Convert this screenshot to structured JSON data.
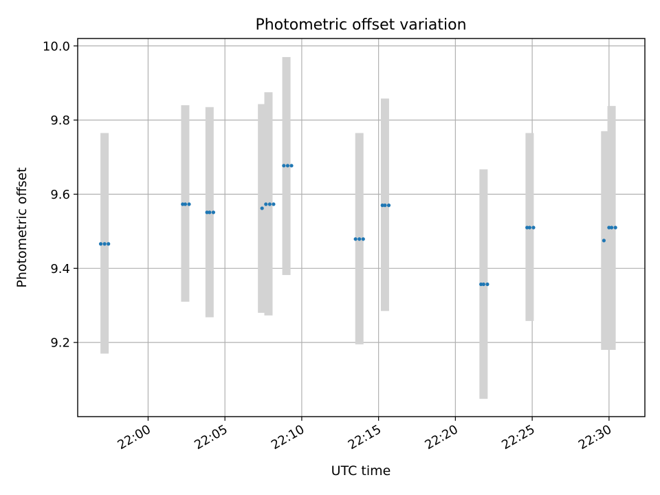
{
  "chart_data": {
    "type": "scatter",
    "title": "Photometric offset variation",
    "xlabel": "UTC time",
    "ylabel": "Photometric offset",
    "x_ticks": [
      "22:00",
      "22:05",
      "22:10",
      "22:15",
      "22:20",
      "22:25",
      "22:30"
    ],
    "y_ticks": [
      "9.2",
      "9.4",
      "9.6",
      "9.8",
      "10.0"
    ],
    "xlim": [
      "21:55:25",
      "22:32:20"
    ],
    "ylim": [
      9.0,
      10.02
    ],
    "grid": true,
    "colors": {
      "points": "#1f77b4",
      "error_bars": "#d3d3d3",
      "grid": "#b0b0b0"
    },
    "error_bars": [
      {
        "x": "21:57:10",
        "low": 9.17,
        "high": 9.765
      },
      {
        "x": "22:02:25",
        "low": 9.31,
        "high": 9.84
      },
      {
        "x": "22:04:00",
        "low": 9.268,
        "high": 9.835
      },
      {
        "x": "22:07:25",
        "low": 9.28,
        "high": 9.843
      },
      {
        "x": "22:07:50",
        "low": 9.273,
        "high": 9.875
      },
      {
        "x": "22:09:00",
        "low": 9.382,
        "high": 9.97
      },
      {
        "x": "22:13:45",
        "low": 9.195,
        "high": 9.765
      },
      {
        "x": "22:15:25",
        "low": 9.285,
        "high": 9.858
      },
      {
        "x": "22:21:50",
        "low": 9.048,
        "high": 9.667
      },
      {
        "x": "22:24:50",
        "low": 9.258,
        "high": 9.765
      },
      {
        "x": "22:29:45",
        "low": 9.18,
        "high": 9.77
      },
      {
        "x": "22:30:10",
        "low": 9.18,
        "high": 9.838
      }
    ],
    "points": [
      {
        "x": "21:56:55",
        "y": 9.466
      },
      {
        "x": "21:57:10",
        "y": 9.466
      },
      {
        "x": "21:57:25",
        "y": 9.466
      },
      {
        "x": "22:02:15",
        "y": 9.573
      },
      {
        "x": "22:02:25",
        "y": 9.573
      },
      {
        "x": "22:02:40",
        "y": 9.573
      },
      {
        "x": "22:03:50",
        "y": 9.551
      },
      {
        "x": "22:04:00",
        "y": 9.551
      },
      {
        "x": "22:04:15",
        "y": 9.551
      },
      {
        "x": "22:07:25",
        "y": 9.562
      },
      {
        "x": "22:07:40",
        "y": 9.573
      },
      {
        "x": "22:07:55",
        "y": 9.573
      },
      {
        "x": "22:08:10",
        "y": 9.573
      },
      {
        "x": "22:08:50",
        "y": 9.677
      },
      {
        "x": "22:09:05",
        "y": 9.677
      },
      {
        "x": "22:09:20",
        "y": 9.677
      },
      {
        "x": "22:13:30",
        "y": 9.479
      },
      {
        "x": "22:13:45",
        "y": 9.479
      },
      {
        "x": "22:14:00",
        "y": 9.479
      },
      {
        "x": "22:15:15",
        "y": 9.57
      },
      {
        "x": "22:15:25",
        "y": 9.57
      },
      {
        "x": "22:15:40",
        "y": 9.57
      },
      {
        "x": "22:21:40",
        "y": 9.357
      },
      {
        "x": "22:21:50",
        "y": 9.357
      },
      {
        "x": "22:22:05",
        "y": 9.357
      },
      {
        "x": "22:24:40",
        "y": 9.51
      },
      {
        "x": "22:24:50",
        "y": 9.51
      },
      {
        "x": "22:25:05",
        "y": 9.51
      },
      {
        "x": "22:29:40",
        "y": 9.475
      },
      {
        "x": "22:30:00",
        "y": 9.51
      },
      {
        "x": "22:30:10",
        "y": 9.51
      },
      {
        "x": "22:30:25",
        "y": 9.51
      }
    ]
  }
}
